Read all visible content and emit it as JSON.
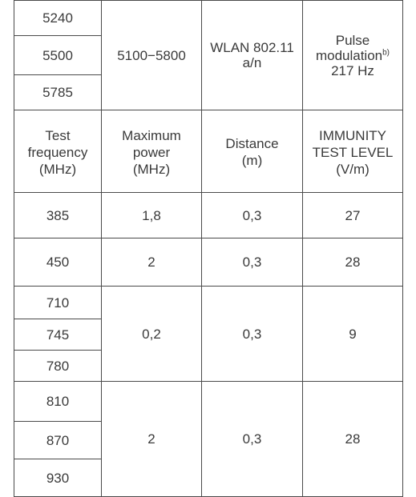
{
  "top_block": {
    "frequencies": [
      "5240",
      "5500",
      "5785"
    ],
    "band": "5100−5800",
    "service_line1": "WLAN 802.11",
    "service_line2": "a/n",
    "modulation_line1": "Pulse",
    "modulation_line2": "modulation",
    "modulation_note": "b)",
    "modulation_line3": "217 Hz"
  },
  "header": {
    "col1": [
      "Test",
      "frequency",
      "(MHz)"
    ],
    "col2": [
      "Maximum",
      "power",
      "(MHz)"
    ],
    "col3": [
      "Distance",
      "(m)"
    ],
    "col4": [
      "IMMUNITY",
      "TEST LEVEL",
      "(V/m)"
    ]
  },
  "rows": {
    "g1": {
      "freq": "385",
      "power": "1,8",
      "distance": "0,3",
      "level": "27"
    },
    "g2": {
      "freq": "450",
      "power": "2",
      "distance": "0,3",
      "level": "28"
    },
    "g3": {
      "freqs": [
        "710",
        "745",
        "780"
      ],
      "power": "0,2",
      "distance": "0,3",
      "level": "9"
    },
    "g4": {
      "freqs": [
        "810",
        "870",
        "930"
      ],
      "power": "2",
      "distance": "0,3",
      "level": "28"
    }
  }
}
